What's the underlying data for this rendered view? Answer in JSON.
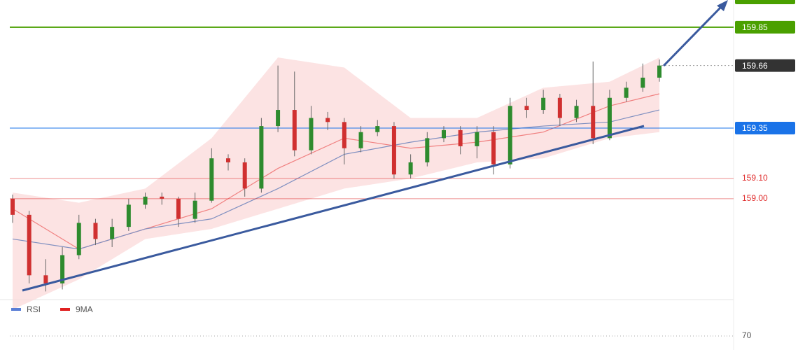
{
  "chart_data": {
    "type": "candlestick",
    "ylim": [
      158.51,
      159.985
    ],
    "colors": {
      "up": "#2e8b2e",
      "down": "#d03030",
      "wick": "#666666"
    },
    "candles": {
      "open": [
        159.0,
        158.92,
        158.62,
        158.58,
        158.72,
        158.88,
        158.8,
        158.86,
        158.97,
        159.01,
        159.0,
        158.9,
        158.99,
        159.2,
        159.18,
        159.05,
        159.36,
        159.44,
        159.24,
        159.4,
        159.38,
        159.25,
        159.33,
        159.36,
        159.12,
        159.18,
        159.3,
        159.34,
        159.26,
        159.33,
        159.17,
        159.46,
        159.44,
        159.5,
        159.4,
        159.46,
        159.3,
        159.5,
        159.55,
        159.6
      ],
      "high": [
        159.02,
        158.94,
        158.7,
        158.76,
        158.92,
        158.9,
        158.9,
        159.0,
        159.03,
        159.03,
        159.01,
        159.03,
        159.25,
        159.22,
        159.2,
        159.4,
        159.66,
        159.63,
        159.46,
        159.43,
        159.4,
        159.36,
        159.39,
        159.38,
        159.22,
        159.33,
        159.36,
        159.36,
        159.36,
        159.36,
        159.5,
        159.5,
        159.54,
        159.52,
        159.49,
        159.68,
        159.54,
        159.58,
        159.67,
        159.69
      ],
      "low": [
        158.88,
        158.58,
        158.54,
        158.55,
        158.7,
        158.77,
        158.76,
        158.84,
        158.95,
        158.97,
        158.86,
        158.88,
        158.98,
        159.14,
        159.01,
        159.03,
        159.33,
        159.21,
        159.22,
        159.34,
        159.17,
        159.23,
        159.31,
        159.1,
        159.1,
        159.16,
        159.28,
        159.22,
        159.2,
        159.12,
        159.15,
        159.4,
        159.42,
        159.36,
        159.38,
        159.27,
        159.29,
        159.48,
        159.53,
        159.58
      ],
      "close": [
        158.92,
        158.62,
        158.58,
        158.72,
        158.88,
        158.8,
        158.86,
        158.97,
        159.01,
        159.0,
        158.9,
        158.99,
        159.2,
        159.18,
        159.05,
        159.36,
        159.44,
        159.24,
        159.4,
        159.38,
        159.25,
        159.33,
        159.36,
        159.12,
        159.18,
        159.3,
        159.34,
        159.26,
        159.33,
        159.17,
        159.46,
        159.44,
        159.5,
        159.4,
        159.46,
        159.3,
        159.5,
        159.55,
        159.6,
        159.66
      ]
    },
    "overlays": {
      "x": [
        0,
        4,
        8,
        12,
        16,
        20,
        24,
        28,
        32,
        36,
        39
      ],
      "upper": [
        159.03,
        158.98,
        159.05,
        159.3,
        159.7,
        159.65,
        159.4,
        159.4,
        159.55,
        159.58,
        159.7
      ],
      "lower": [
        158.45,
        158.6,
        158.8,
        158.85,
        158.95,
        159.05,
        159.1,
        159.18,
        159.2,
        159.3,
        159.33
      ],
      "ma_fast": [
        158.95,
        158.75,
        158.85,
        158.95,
        159.15,
        159.3,
        159.25,
        159.28,
        159.33,
        159.46,
        159.52
      ],
      "ma_slow": [
        158.8,
        158.75,
        158.85,
        158.9,
        159.05,
        159.22,
        159.28,
        159.33,
        159.36,
        159.38,
        159.44
      ]
    },
    "levels": [
      {
        "value": 159.85,
        "label": "159.85",
        "color": "#4aa000",
        "style": "box"
      },
      {
        "value": 159.66,
        "label": "159.66",
        "color": "#333333",
        "style": "box-dotted"
      },
      {
        "value": 159.35,
        "label": "159.35",
        "color": "#1a73e8",
        "style": "box"
      },
      {
        "value": 159.1,
        "label": "159.10",
        "color": "#e03030",
        "style": "text"
      },
      {
        "value": 159.0,
        "label": "159.00",
        "color": "#e03030",
        "style": "text"
      }
    ],
    "rsi_panel": {
      "legend": [
        {
          "name": "RSI",
          "color": "#5b7fd6"
        },
        {
          "name": "9MA",
          "color": "#e02020"
        }
      ],
      "yticks": [
        70
      ]
    }
  }
}
